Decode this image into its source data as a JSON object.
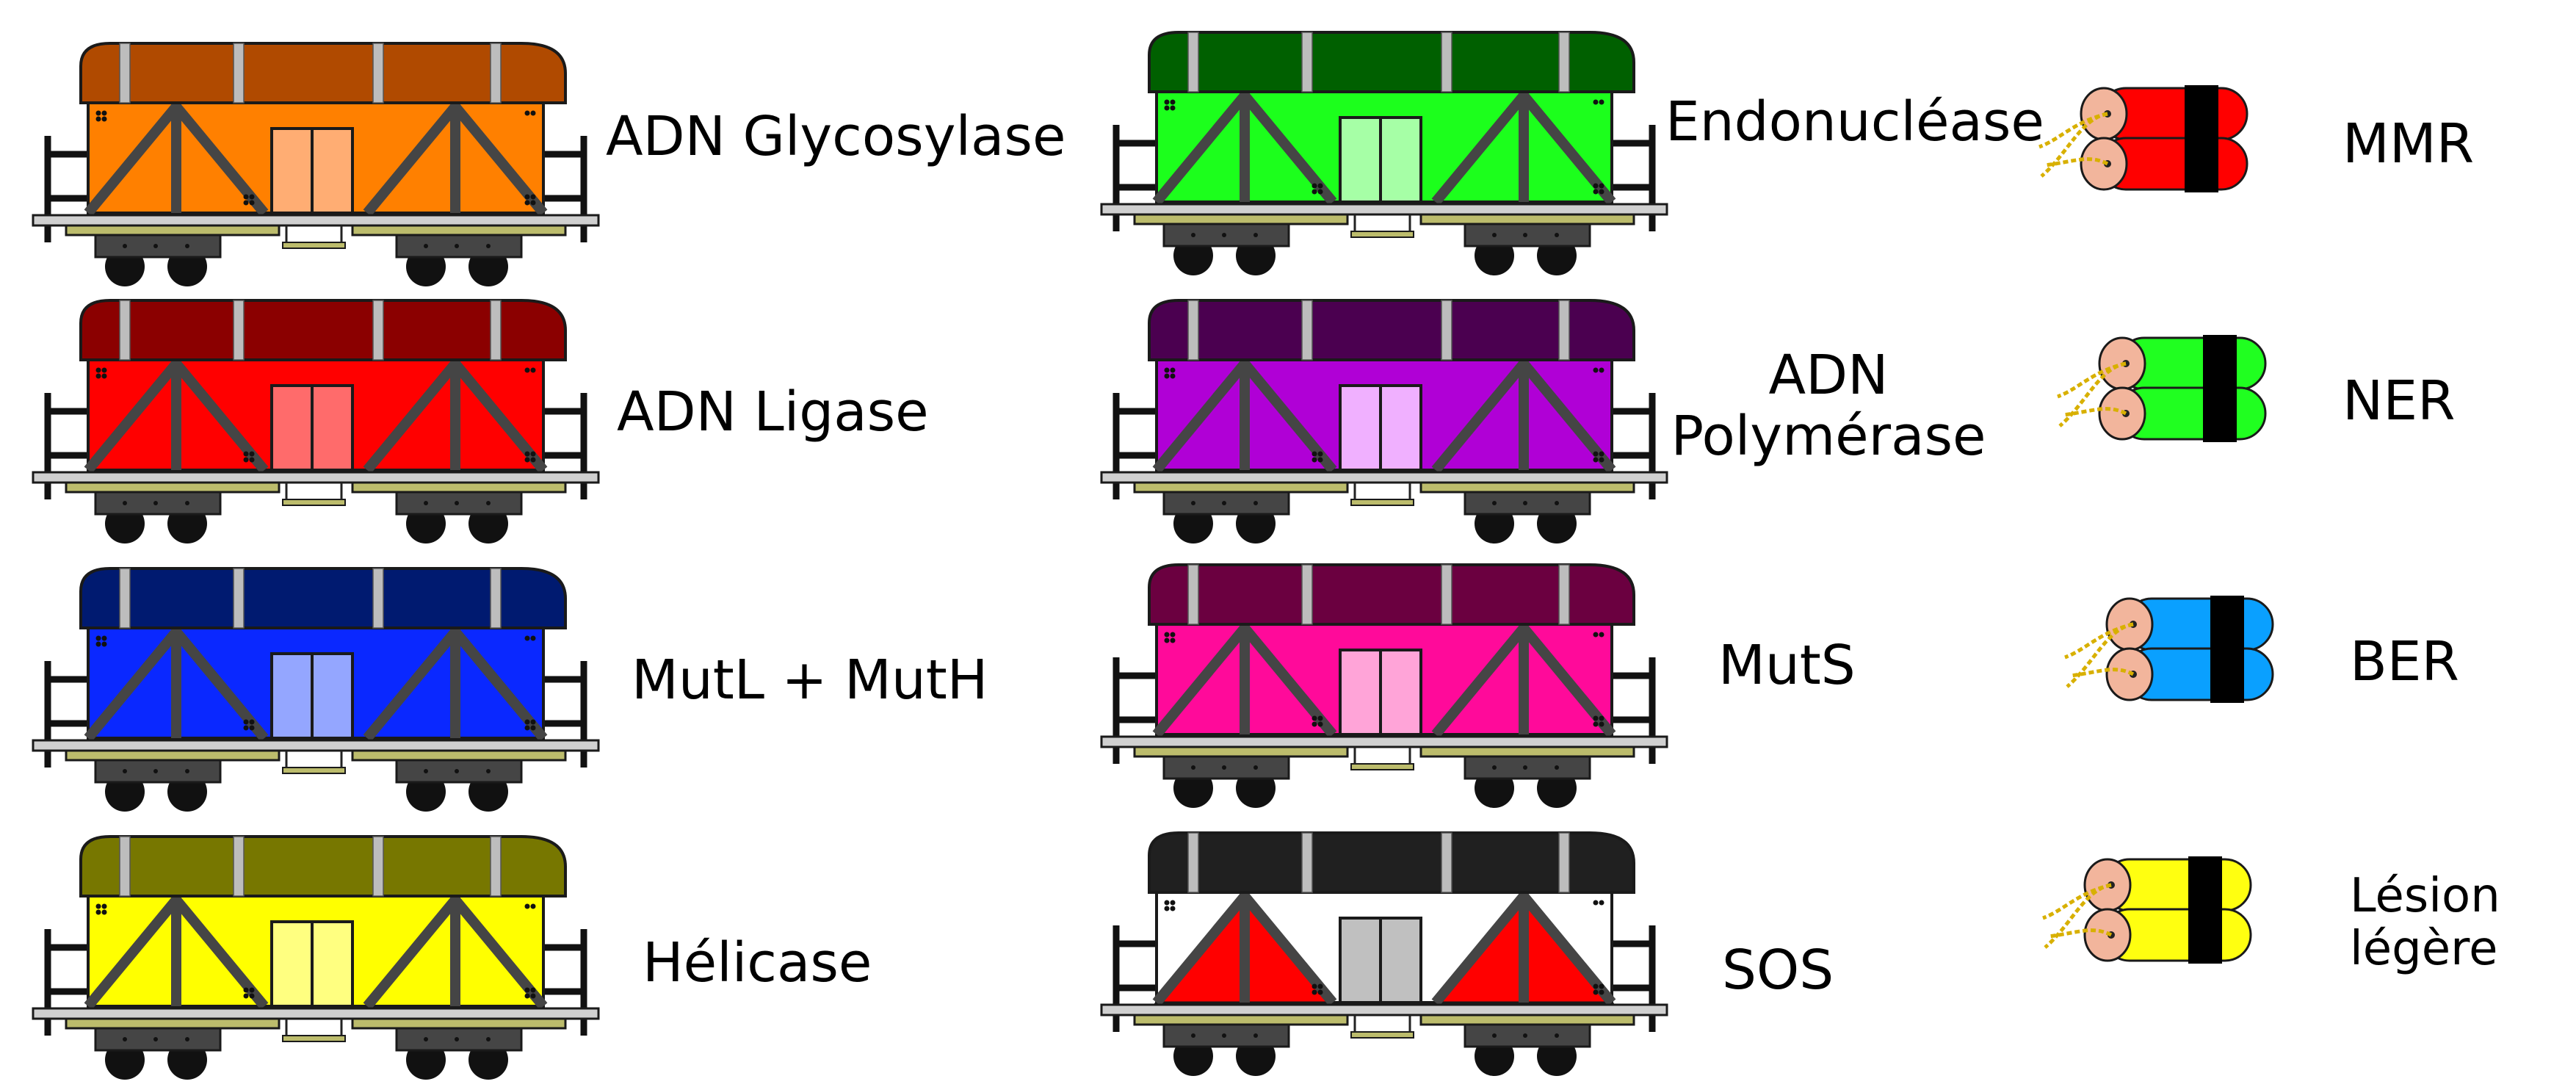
{
  "wagons": [
    {
      "label": "ADN Glycosylase",
      "roof": "#b04a00",
      "body": "#ff8000",
      "door": "#ffad73"
    },
    {
      "label": "ADN Ligase",
      "roof": "#8b0000",
      "body": "#ff0000",
      "door": "#ff6b6b"
    },
    {
      "label": "MutL + MutH",
      "roof": "#001a70",
      "body": "#0a28ff",
      "door": "#94a6ff"
    },
    {
      "label": "Hélicase",
      "roof": "#777700",
      "body": "#ffff00",
      "door": "#ffff80"
    },
    {
      "label": "Endonucléase",
      "roof": "#006000",
      "body": "#1cff1c",
      "door": "#a6ffa6"
    },
    {
      "label": "ADN Polymérase",
      "label_lines": [
        "ADN",
        "Polymérase"
      ],
      "roof": "#4b0050",
      "body": "#b000d6",
      "door": "#f0b0ff"
    },
    {
      "label": "MutS",
      "roof": "#6b0040",
      "body": "#ff0a9a",
      "door": "#ffa4d8"
    },
    {
      "label": "SOS",
      "roof": "#202020",
      "body": "#ffffff",
      "door": "#c0c0c0",
      "triangles": "#ff0000"
    }
  ],
  "dynamite": [
    {
      "label": "MMR",
      "color": "#ff0000"
    },
    {
      "label": "NER",
      "color": "#20ff20"
    },
    {
      "label": "BER",
      "color": "#0aa0ff"
    },
    {
      "label": "Lésion légère",
      "label_lines": [
        "Lésion",
        "légère"
      ],
      "color": "#ffff10"
    }
  ],
  "colors": {
    "outline": "#1a1a1a",
    "frame": "#454545",
    "post": "#bdbdbd",
    "platform": "#d0d0d0",
    "chassis": "#bcbc6c",
    "bogie": "#454545",
    "wheel": "#111111",
    "stick_end": "#f2b59c",
    "fuse": "#d8b000",
    "band": "#000000"
  }
}
